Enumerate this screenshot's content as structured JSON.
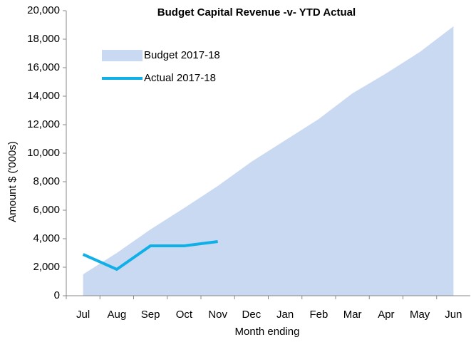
{
  "chart_data": {
    "type": "area-line",
    "title": "Budget Capital Revenue -v- YTD Actual",
    "x_label": "Month ending",
    "y_label": "Amount $ ('000s)",
    "categories": [
      "Jul",
      "Aug",
      "Sep",
      "Oct",
      "Nov",
      "Dec",
      "Jan",
      "Feb",
      "Mar",
      "Apr",
      "May",
      "Jun"
    ],
    "series": [
      {
        "name": "Budget 2017-18",
        "color": "#c9d9f1",
        "kind": "area",
        "values": [
          1500,
          3000,
          4650,
          6150,
          7700,
          9400,
          10900,
          12400,
          14200,
          15600,
          17100,
          18900
        ]
      },
      {
        "name": "Actual 2017-18",
        "color": "#0fb0e8",
        "kind": "line",
        "values": [
          2900,
          1850,
          3500,
          3500,
          3800,
          null,
          null,
          null,
          null,
          null,
          null,
          null
        ]
      }
    ],
    "ylim": [
      0,
      20000
    ],
    "yticks": [
      0,
      {
        "value": 2000,
        "label": "2,000"
      },
      {
        "value": 4000,
        "label": "4,000"
      },
      {
        "value": 6000,
        "label": "6,000"
      },
      {
        "value": 8000,
        "label": "8,000"
      },
      {
        "value": 10000,
        "label": "10,000"
      },
      {
        "value": 12000,
        "label": "12,000"
      },
      {
        "value": 14000,
        "label": "14,000"
      },
      {
        "value": 16000,
        "label": "16,000"
      },
      {
        "value": 18000,
        "label": "18,000"
      },
      {
        "value": 20000,
        "label": "20,000"
      }
    ],
    "legend": "upper left"
  }
}
